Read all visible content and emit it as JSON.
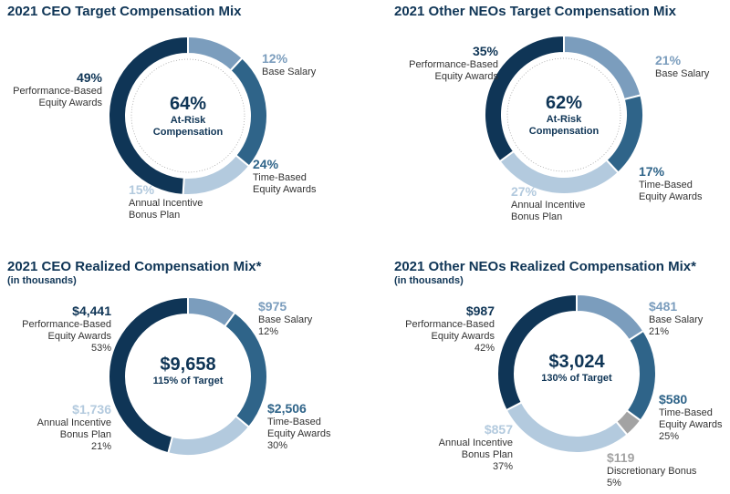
{
  "chart_data": [
    {
      "type": "donut",
      "title": "2021 CEO Target Compensation Mix",
      "center_text": "64%",
      "center_caption": "At-Risk\nCompensation",
      "categories": [
        "Base Salary",
        "Time-Based\nEquity Awards",
        "Annual Incentive\nBonus Plan",
        "Performance-Based\nEquity Awards"
      ],
      "values": [
        12,
        24,
        15,
        49
      ],
      "value_labels": [
        "12%",
        "24%",
        "15%",
        "49%"
      ],
      "colors": [
        "#7b9dbd",
        "#2f6489",
        "#b3cade",
        "#0f3556"
      ]
    },
    {
      "type": "donut",
      "title": "2021 Other NEOs Target Compensation Mix",
      "center_text": "62%",
      "center_caption": "At-Risk\nCompensation",
      "categories": [
        "Base Salary",
        "Time-Based\nEquity Awards",
        "Annual Incentive\nBonus Plan",
        "Performance-Based\nEquity Awards"
      ],
      "values": [
        21,
        17,
        27,
        35
      ],
      "value_labels": [
        "21%",
        "17%",
        "27%",
        "35%"
      ],
      "colors": [
        "#7b9dbd",
        "#2f6489",
        "#b3cade",
        "#0f3556"
      ]
    },
    {
      "type": "donut",
      "title": "2021 CEO Realized Compensation Mix*",
      "subtitle": "(in thousands)",
      "center_text": "$9,658",
      "center_caption": "115% of Target",
      "categories": [
        "Base Salary",
        "Time-Based\nEquity Awards",
        "Annual Incentive\nBonus Plan",
        "Performance-Based\nEquity Awards"
      ],
      "values": [
        975,
        2506,
        1736,
        4441
      ],
      "value_labels": [
        "$975",
        "$2,506",
        "$1,736",
        "$4,441"
      ],
      "percent_labels": [
        "12%",
        "30%",
        "21%",
        "53%"
      ],
      "colors": [
        "#7b9dbd",
        "#2f6489",
        "#b3cade",
        "#0f3556"
      ]
    },
    {
      "type": "donut",
      "title": "2021 Other NEOs Realized Compensation Mix*",
      "subtitle": "(in thousands)",
      "center_text": "$3,024",
      "center_caption": "130% of Target",
      "categories": [
        "Base Salary",
        "Time-Based\nEquity Awards",
        "Discretionary Bonus",
        "Annual Incentive\nBonus Plan",
        "Performance-Based\nEquity Awards"
      ],
      "values": [
        481,
        580,
        119,
        857,
        987
      ],
      "value_labels": [
        "$481",
        "$580",
        "$119",
        "$857",
        "$987"
      ],
      "percent_labels": [
        "21%",
        "25%",
        "5%",
        "37%",
        "42%"
      ],
      "colors": [
        "#7b9dbd",
        "#2f6489",
        "#a3a3a3",
        "#b3cade",
        "#0f3556"
      ]
    }
  ]
}
